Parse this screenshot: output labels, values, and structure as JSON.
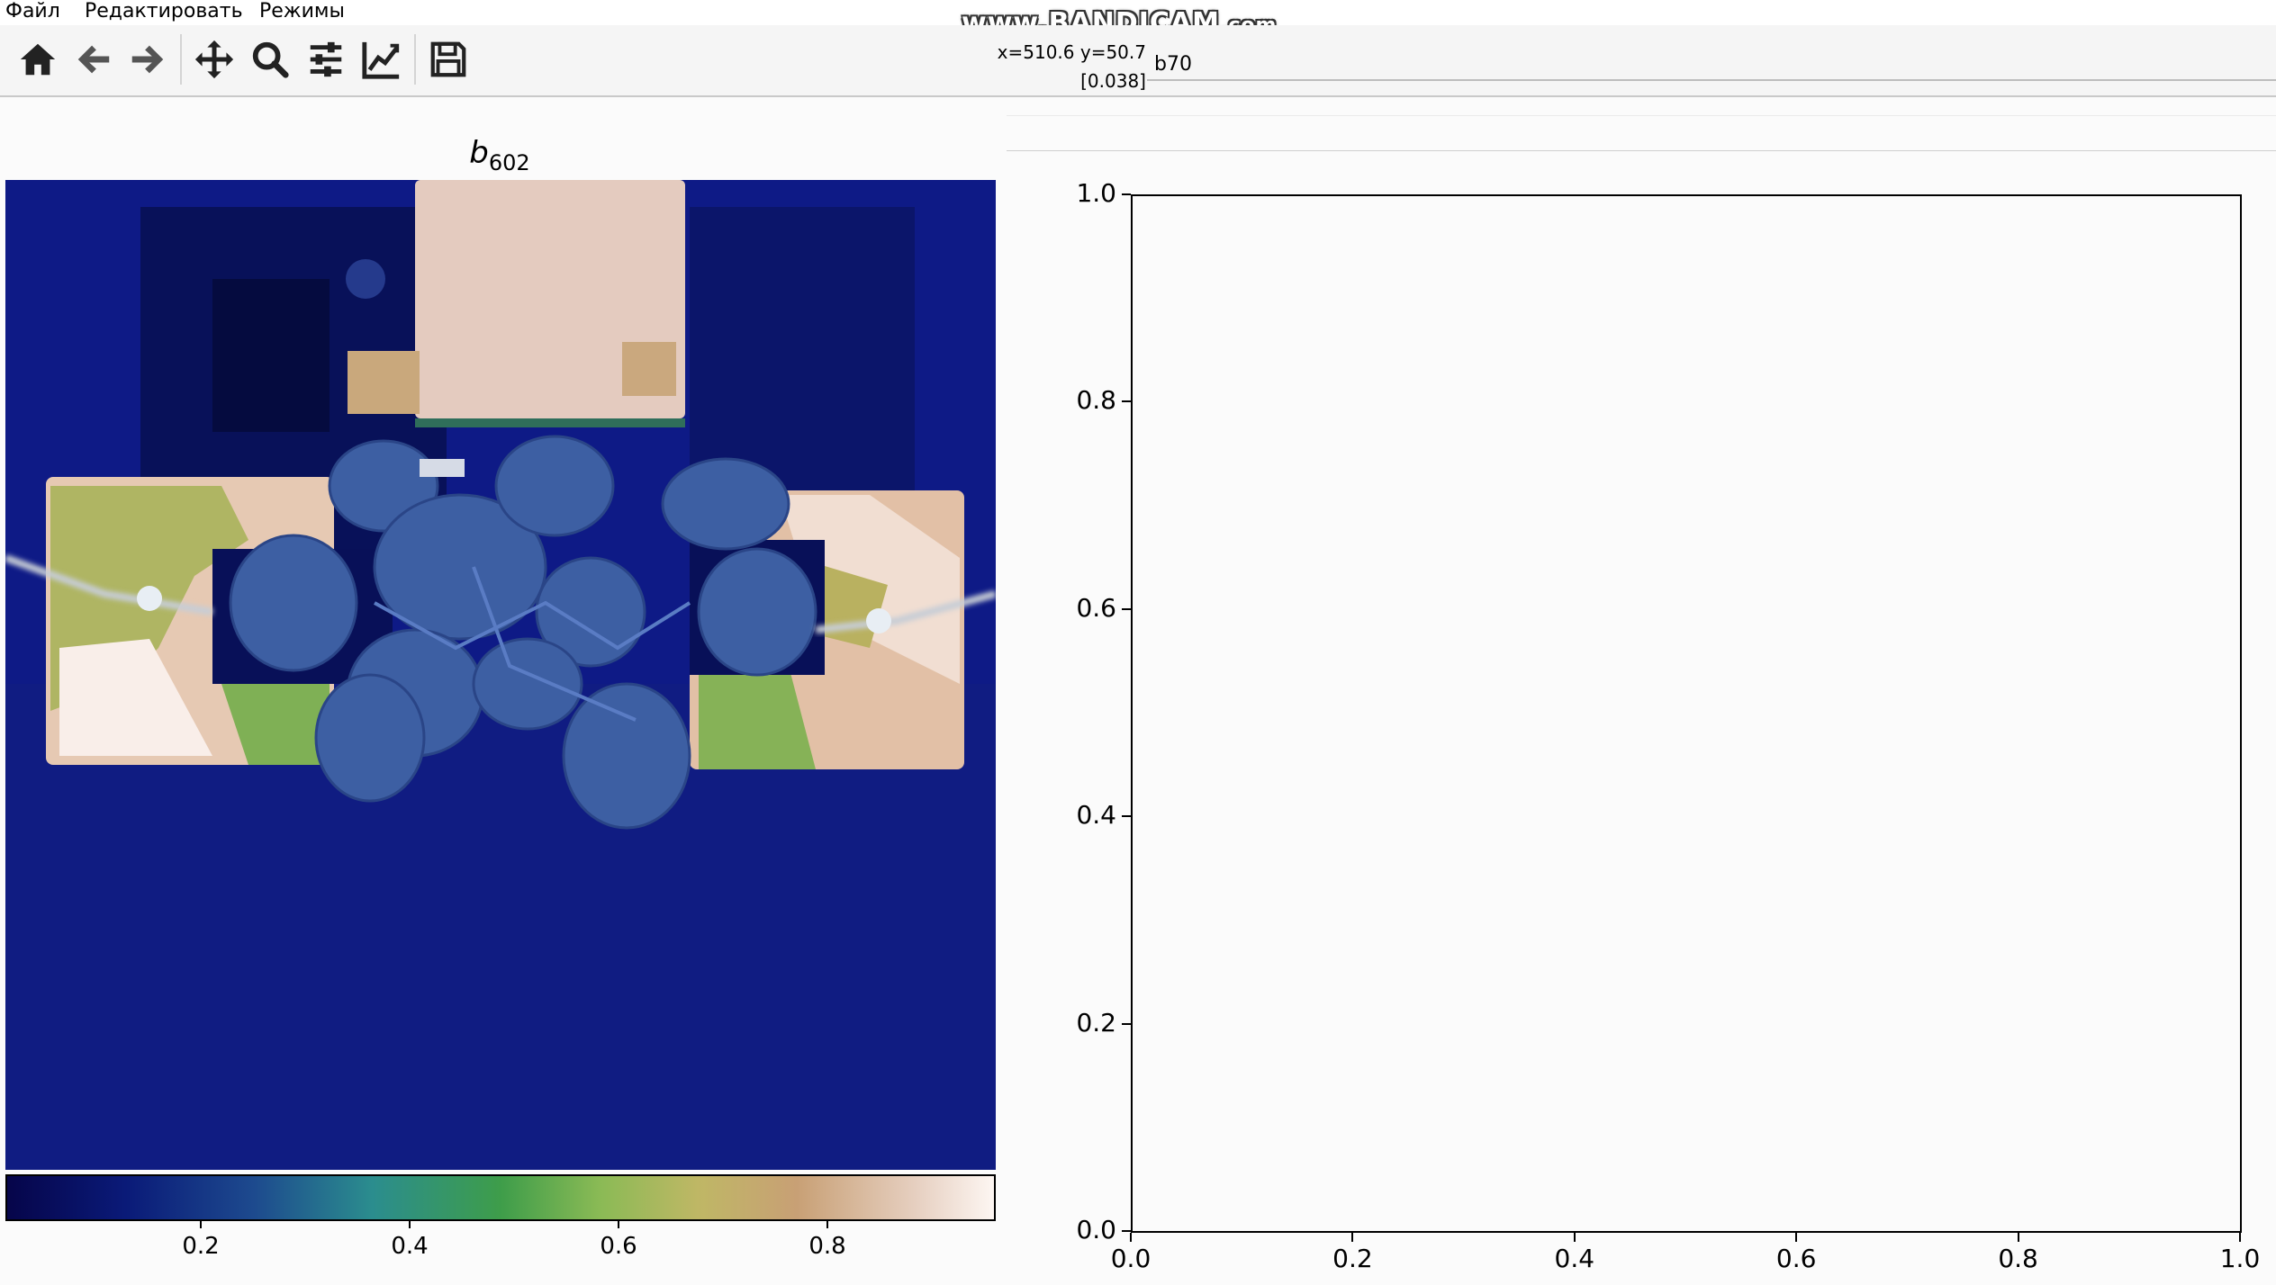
{
  "menu": {
    "file": "Файл",
    "edit": "Редактировать",
    "modes": "Режимы"
  },
  "toolbar": {
    "icons": [
      "home-icon",
      "back-arrow-icon",
      "forward-arrow-icon",
      "pan-move-icon",
      "zoom-magnifier-icon",
      "configure-subplots-icon",
      "edit-axis-icon",
      "save-icon"
    ]
  },
  "status": {
    "coords": "x=510.6 y=50.7",
    "value": "[0.038]"
  },
  "command_field": {
    "value": "b70"
  },
  "watermark": {
    "main": "www.BANDICAM",
    "suffix": ".com"
  },
  "image_panel": {
    "title_var": "b",
    "title_sub": "602",
    "colormap": "gist_earth",
    "colorbar_ticks": [
      "0.2",
      "0.4",
      "0.6",
      "0.8"
    ]
  },
  "chart_data": {
    "type": "line",
    "series": [],
    "xlim": [
      0.0,
      1.0
    ],
    "ylim": [
      0.0,
      1.0
    ],
    "xticks": [
      "0.0",
      "0.2",
      "0.4",
      "0.6",
      "0.8",
      "1.0"
    ],
    "yticks": [
      "0.0",
      "0.2",
      "0.4",
      "0.6",
      "0.8",
      "1.0"
    ],
    "grid": false,
    "title": "",
    "xlabel": "",
    "ylabel": ""
  }
}
